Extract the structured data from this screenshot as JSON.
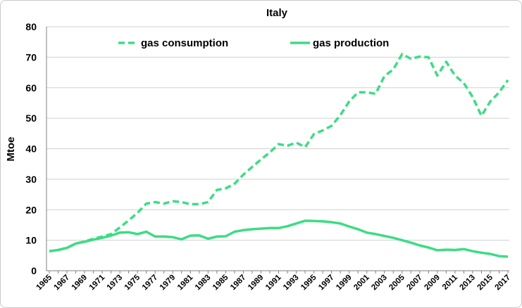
{
  "chart_data": {
    "type": "line",
    "title": "Italy",
    "xlabel": "",
    "ylabel": "Mtoe",
    "ylim": [
      0,
      80
    ],
    "yticks": [
      0,
      10,
      20,
      30,
      40,
      50,
      60,
      70,
      80
    ],
    "x": [
      1965,
      1966,
      1967,
      1968,
      1969,
      1970,
      1971,
      1972,
      1973,
      1974,
      1975,
      1976,
      1977,
      1978,
      1979,
      1980,
      1981,
      1982,
      1983,
      1984,
      1985,
      1986,
      1987,
      1988,
      1989,
      1990,
      1991,
      1992,
      1993,
      1994,
      1995,
      1996,
      1997,
      1998,
      1999,
      2000,
      2001,
      2002,
      2003,
      2004,
      2005,
      2006,
      2007,
      2008,
      2009,
      2010,
      2011,
      2012,
      2013,
      2014,
      2015,
      2016,
      2017
    ],
    "xtick_labels": [
      "1965",
      "1967",
      "1969",
      "1971",
      "1973",
      "1975",
      "1977",
      "1979",
      "1981",
      "1983",
      "1985",
      "1987",
      "1989",
      "1991",
      "1993",
      "1995",
      "1997",
      "1999",
      "2001",
      "2003",
      "2005",
      "2007",
      "2009",
      "2011",
      "2013",
      "2015",
      "2017"
    ],
    "grid": "horizontal",
    "legend": "top",
    "series": [
      {
        "name": "gas consumption",
        "style": "dashed",
        "color": "#3ddc84",
        "values": [
          6.4,
          6.8,
          7.5,
          8.9,
          9.6,
          10.5,
          11.2,
          12.0,
          14.2,
          16.5,
          19.0,
          22.0,
          22.5,
          22.0,
          22.8,
          22.5,
          21.8,
          21.8,
          22.5,
          26.5,
          27.0,
          28.5,
          31.5,
          34.0,
          36.5,
          38.8,
          41.5,
          41.0,
          42.0,
          40.5,
          44.8,
          46.0,
          47.5,
          51.0,
          55.5,
          58.5,
          58.5,
          58.0,
          63.8,
          66.0,
          71.0,
          69.5,
          70.2,
          70.0,
          64.0,
          68.5,
          64.0,
          61.5,
          57.0,
          50.8,
          55.5,
          58.5,
          62.5
        ]
      },
      {
        "name": "gas production",
        "style": "solid",
        "color": "#3ddc84",
        "values": [
          6.4,
          6.8,
          7.5,
          8.9,
          9.5,
          10.2,
          10.8,
          11.5,
          12.5,
          12.6,
          12.0,
          12.8,
          11.2,
          11.2,
          11.0,
          10.3,
          11.5,
          11.6,
          10.5,
          11.2,
          11.3,
          12.8,
          13.3,
          13.6,
          13.8,
          14.0,
          14.0,
          14.6,
          15.5,
          16.4,
          16.3,
          16.2,
          15.9,
          15.5,
          14.5,
          13.6,
          12.5,
          12.0,
          11.4,
          10.8,
          10.0,
          9.2,
          8.3,
          7.6,
          6.7,
          6.9,
          6.8,
          7.1,
          6.4,
          5.9,
          5.5,
          4.8,
          4.6
        ]
      }
    ]
  }
}
